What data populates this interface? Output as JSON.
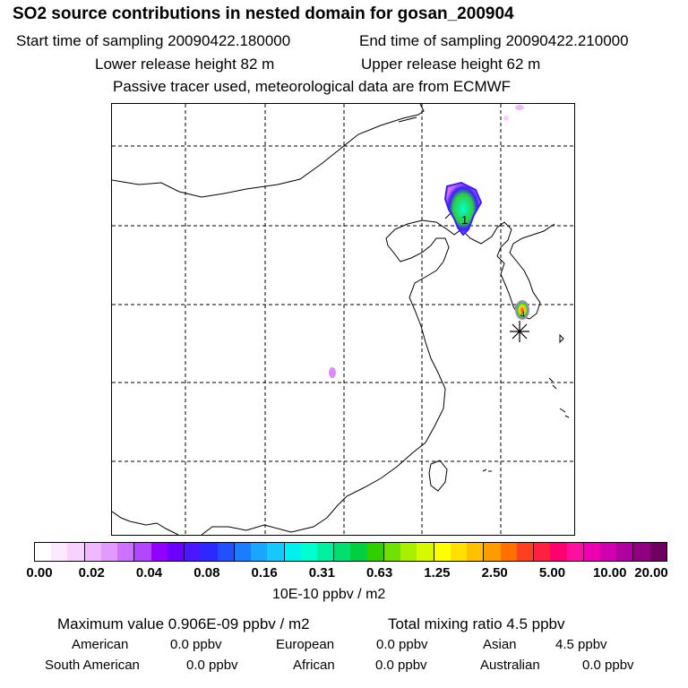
{
  "header": {
    "title": "SO2 source contributions in nested domain for gosan_200904",
    "start_time": "Start time of sampling 20090422.180000",
    "end_time": "End time of sampling 20090422.210000",
    "lower_release": "Lower release height   82 m",
    "upper_release": "Upper release height   62 m",
    "tracer_note": "Passive tracer used, meteorological data are from ECMWF"
  },
  "map": {
    "contour_label": "1",
    "contour_label_small": "4",
    "plume_colors": {
      "magenta": "#d66bff",
      "cyan": "#00ffd0",
      "green": "#2ecc40",
      "blue": "#3a1cff",
      "red": "#ff2a55",
      "yellow": "#ffe000"
    }
  },
  "colorbar": {
    "colors": [
      "#ffffff",
      "#fce9ff",
      "#f7d2ff",
      "#f0b8ff",
      "#e29aff",
      "#cc72ff",
      "#b347ff",
      "#9200ff",
      "#6a00ff",
      "#4a18ff",
      "#2c28ff",
      "#2050ff",
      "#1a7cff",
      "#1aa6ff",
      "#16c8ff",
      "#00f0f0",
      "#00ffd0",
      "#00f0a0",
      "#00e070",
      "#00d040",
      "#30d000",
      "#70e000",
      "#a8f000",
      "#d8f800",
      "#ffff00",
      "#ffe000",
      "#ffc000",
      "#ff9c00",
      "#ff7000",
      "#ff4020",
      "#ff2040",
      "#ff0070",
      "#ff10a0",
      "#ee00b0",
      "#d000b0",
      "#b000a0",
      "#900080",
      "#700060"
    ],
    "ticks": [
      "0.00",
      "0.02",
      "0.04",
      "0.08",
      "0.16",
      "0.31",
      "0.63",
      "1.25",
      "2.50",
      "5.00",
      "10.00",
      "20.00"
    ],
    "unit": "10E-10 ppbv / m2"
  },
  "summary": {
    "max_value": "Maximum value  0.906E-09 ppbv / m2",
    "total_mixing": "Total mixing ratio        4.5 ppbv",
    "american_label": "American",
    "american_value": "0.0 ppbv",
    "european_label": "European",
    "european_value": "0.0 ppbv",
    "asian_label": "Asian",
    "asian_value": "4.5 ppbv",
    "south_american_label": "South American",
    "south_american_value": "0.0 ppbv",
    "african_label": "African",
    "african_value": "0.0 ppbv",
    "australian_label": "Australian",
    "australian_value": "0.0 ppbv"
  }
}
